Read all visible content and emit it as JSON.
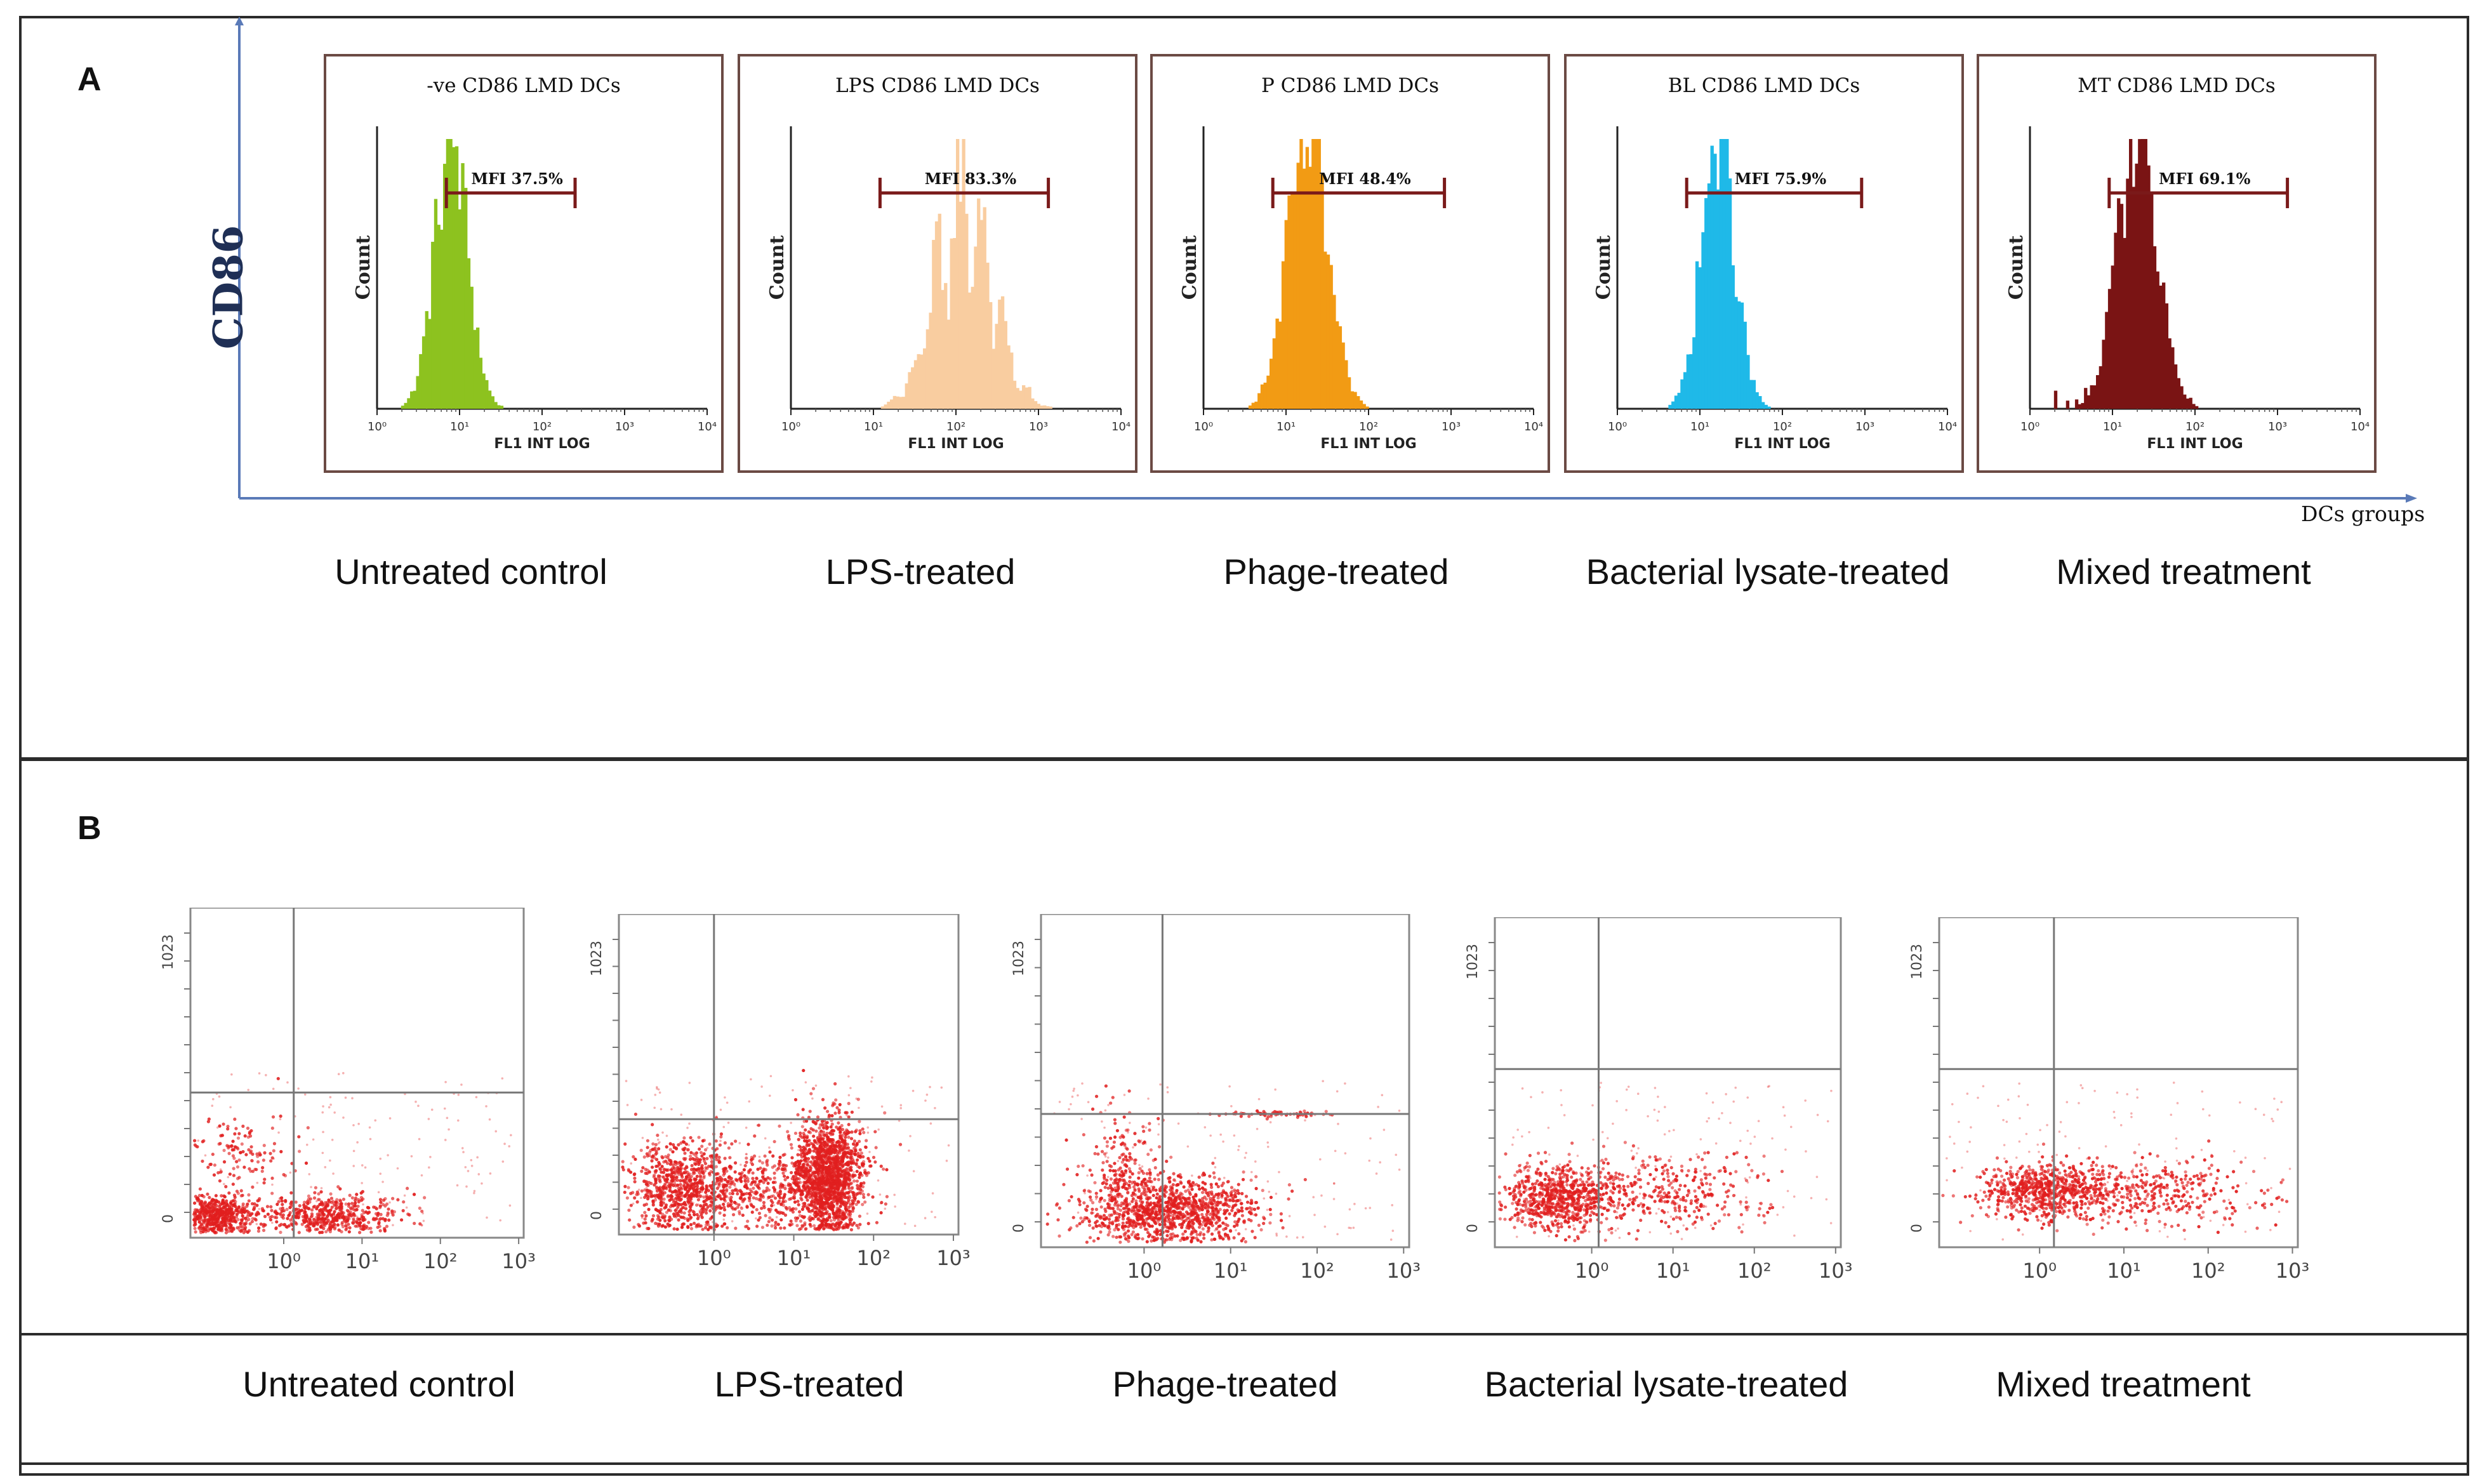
{
  "panel_a": {
    "letter": "A",
    "y_axis_label": "CD86",
    "x_axis_label": "DCs groups",
    "histograms": [
      {
        "title": "-ve CD86 LMD DCs",
        "mfi_label": "MFI 37.5%",
        "mfi_value": 37.5,
        "color": "#8dc21f",
        "count_label": "Count",
        "x_axis_title": "FL1 INT LOG",
        "group": "Untreated control"
      },
      {
        "title": "LPS CD86 LMD DCs",
        "mfi_label": "MFI 83.3%",
        "mfi_value": 83.3,
        "color": "#f9cda0",
        "count_label": "Count",
        "x_axis_title": "FL1 INT LOG",
        "group": "LPS-treated"
      },
      {
        "title": "P CD86 LMD DCs",
        "mfi_label": "MFI 48.4%",
        "mfi_value": 48.4,
        "color": "#f29b14",
        "count_label": "Count",
        "x_axis_title": "FL1 INT LOG",
        "group": "Phage-treated"
      },
      {
        "title": "BL CD86 LMD DCs",
        "mfi_label": "MFI 75.9%",
        "mfi_value": 75.9,
        "color": "#1fb9e8",
        "count_label": "Count",
        "x_axis_title": "FL1 INT LOG",
        "group": "Bacterial lysate-treated"
      },
      {
        "title": "MT CD86 LMD DCs",
        "mfi_label": "MFI 69.1%",
        "mfi_value": 69.1,
        "color": "#7a1414",
        "count_label": "Count",
        "x_axis_title": "FL1 INT LOG",
        "group": "Mixed treatment"
      }
    ],
    "hist_ticks": [
      "10⁰",
      "10¹",
      "10²",
      "10³",
      "10⁴"
    ]
  },
  "panel_b": {
    "letter": "B",
    "y_top_tick": "1023",
    "y_bottom_tick": "0",
    "x_ticks": [
      "10⁰",
      "10¹",
      "10²",
      "10³"
    ],
    "dot_color": "#e11f1f",
    "groups": [
      "Untreated control",
      "LPS-treated",
      "Phage-treated",
      "Bacterial lysate-treated",
      "Mixed treatment"
    ]
  }
}
